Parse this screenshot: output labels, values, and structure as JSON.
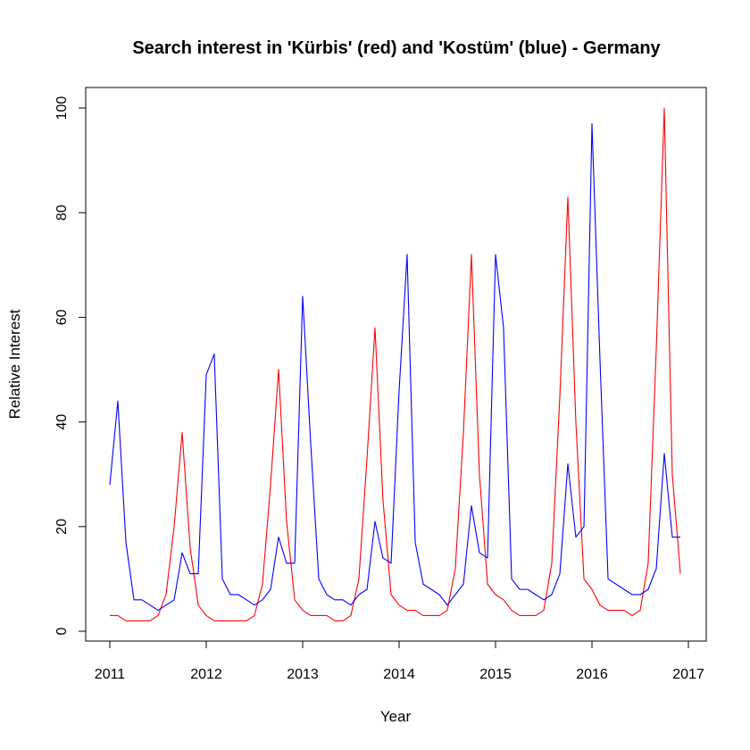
{
  "chart_data": {
    "type": "line",
    "title": "Search interest in 'Kürbis' (red) and 'Kostüm' (blue) - Germany",
    "xlabel": "Year",
    "ylabel": "Relative Interest",
    "xlim": [
      2011,
      2017
    ],
    "ylim": [
      0,
      100
    ],
    "x_ticks": [
      2011,
      2012,
      2013,
      2014,
      2015,
      2016,
      2017
    ],
    "y_ticks": [
      0,
      20,
      40,
      60,
      80,
      100
    ],
    "grid": false,
    "legend": "none",
    "x": [
      2011.0,
      2011.083,
      2011.167,
      2011.25,
      2011.333,
      2011.417,
      2011.5,
      2011.583,
      2011.667,
      2011.75,
      2011.833,
      2011.917,
      2012.0,
      2012.083,
      2012.167,
      2012.25,
      2012.333,
      2012.417,
      2012.5,
      2012.583,
      2012.667,
      2012.75,
      2012.833,
      2012.917,
      2013.0,
      2013.083,
      2013.167,
      2013.25,
      2013.333,
      2013.417,
      2013.5,
      2013.583,
      2013.667,
      2013.75,
      2013.833,
      2013.917,
      2014.0,
      2014.083,
      2014.167,
      2014.25,
      2014.333,
      2014.417,
      2014.5,
      2014.583,
      2014.667,
      2014.75,
      2014.833,
      2014.917,
      2015.0,
      2015.083,
      2015.167,
      2015.25,
      2015.333,
      2015.417,
      2015.5,
      2015.583,
      2015.667,
      2015.75,
      2015.833,
      2015.917,
      2016.0,
      2016.083,
      2016.167,
      2016.25,
      2016.333,
      2016.417,
      2016.5,
      2016.583,
      2016.667,
      2016.75,
      2016.833,
      2016.917
    ],
    "series": [
      {
        "color": "#ff0000",
        "values": [
          3,
          3,
          2,
          2,
          2,
          2,
          3,
          7,
          20,
          38,
          16,
          5,
          3,
          2,
          2,
          2,
          2,
          2,
          3,
          9,
          28,
          50,
          21,
          6,
          4,
          3,
          3,
          3,
          2,
          2,
          3,
          10,
          33,
          58,
          25,
          7,
          5,
          4,
          4,
          3,
          3,
          3,
          4,
          12,
          38,
          72,
          30,
          9,
          7,
          6,
          4,
          3,
          3,
          3,
          4,
          13,
          45,
          83,
          40,
          10,
          8,
          5,
          4,
          4,
          4,
          3,
          4,
          13,
          54,
          100,
          30,
          11
        ]
      },
      {
        "color": "#0000ff",
        "values": [
          28,
          44,
          17,
          6,
          6,
          5,
          4,
          5,
          6,
          15,
          11,
          11,
          49,
          53,
          10,
          7,
          7,
          6,
          5,
          6,
          8,
          18,
          13,
          13,
          64,
          36,
          10,
          7,
          6,
          6,
          5,
          7,
          8,
          21,
          14,
          13,
          46,
          72,
          17,
          9,
          8,
          7,
          5,
          7,
          9,
          24,
          15,
          14,
          72,
          58,
          10,
          8,
          8,
          7,
          6,
          7,
          11,
          32,
          18,
          20,
          97,
          52,
          10,
          9,
          8,
          7,
          7,
          8,
          12,
          34,
          18,
          18
        ]
      }
    ]
  }
}
